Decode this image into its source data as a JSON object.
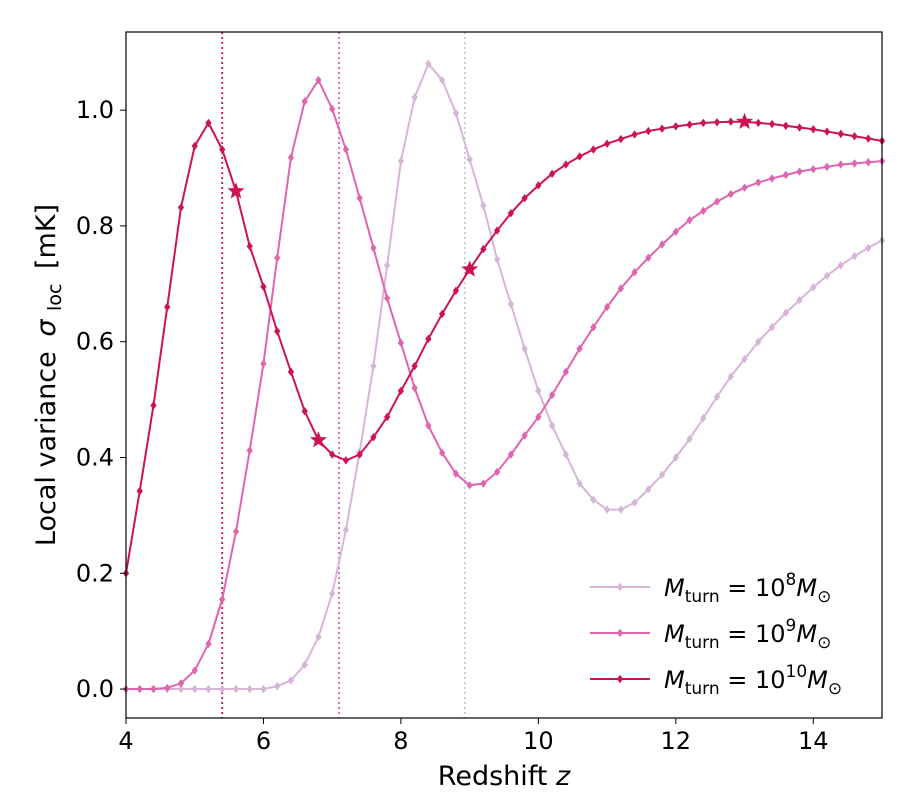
{
  "chart_data": {
    "type": "line",
    "xlabel": "Redshift",
    "xlabel_var": "z",
    "ylabel": "Local variance",
    "ylabel_symbol": "σ",
    "ylabel_sub": "loc",
    "ylabel_unit": "[mK]",
    "xlim": [
      4,
      15
    ],
    "ylim": [
      -0.05,
      1.135
    ],
    "xticks": [
      4,
      6,
      8,
      10,
      12,
      14
    ],
    "yticks": [
      0.0,
      0.2,
      0.4,
      0.6,
      0.8,
      1.0
    ],
    "xtick_labels": [
      "4",
      "6",
      "8",
      "10",
      "12",
      "14"
    ],
    "ytick_labels": [
      "0.0",
      "0.2",
      "0.4",
      "0.6",
      "0.8",
      "1.0"
    ],
    "legend_position": "lower-right",
    "series": [
      {
        "name_main": "M",
        "name_sub": "turn",
        "name_eq": " = 10",
        "name_exp": "8",
        "name_tail": "M",
        "name_tail_sub": "⊙",
        "color": "#d7b5d8",
        "marker": "diamond",
        "x": [
          4.0,
          4.2,
          4.4,
          4.6,
          4.8,
          5.0,
          5.2,
          5.4,
          5.6,
          5.8,
          6.0,
          6.2,
          6.4,
          6.6,
          6.8,
          7.0,
          7.2,
          7.4,
          7.6,
          7.8,
          8.0,
          8.2,
          8.4,
          8.6,
          8.8,
          9.0,
          9.2,
          9.4,
          9.6,
          9.8,
          10.0,
          10.2,
          10.4,
          10.6,
          10.8,
          11.0,
          11.2,
          11.4,
          11.6,
          11.8,
          12.0,
          12.2,
          12.4,
          12.6,
          12.8,
          13.0,
          13.2,
          13.4,
          13.6,
          13.8,
          14.0,
          14.2,
          14.4,
          14.6,
          14.8,
          15.0
        ],
        "y": [
          0.0,
          0.0,
          0.0,
          0.0,
          0.0,
          0.0,
          0.0,
          0.0,
          0.0,
          0.0,
          0.0,
          0.005,
          0.015,
          0.042,
          0.09,
          0.165,
          0.275,
          0.41,
          0.558,
          0.732,
          0.912,
          1.022,
          1.08,
          1.052,
          0.995,
          0.915,
          0.835,
          0.742,
          0.665,
          0.588,
          0.515,
          0.455,
          0.405,
          0.355,
          0.327,
          0.31,
          0.31,
          0.322,
          0.345,
          0.37,
          0.4,
          0.432,
          0.468,
          0.505,
          0.54,
          0.57,
          0.6,
          0.625,
          0.65,
          0.672,
          0.694,
          0.714,
          0.732,
          0.748,
          0.762,
          0.775
        ],
        "stars": [],
        "vline_x": 8.93,
        "vline_color": "#c8c8c8"
      },
      {
        "name_main": "M",
        "name_sub": "turn",
        "name_eq": " = 10",
        "name_exp": "9",
        "name_tail": "M",
        "name_tail_sub": "⊙",
        "color": "#df65b0",
        "marker": "diamond",
        "x": [
          4.0,
          4.2,
          4.4,
          4.6,
          4.8,
          5.0,
          5.2,
          5.4,
          5.6,
          5.8,
          6.0,
          6.2,
          6.4,
          6.6,
          6.8,
          7.0,
          7.2,
          7.4,
          7.6,
          7.8,
          8.0,
          8.2,
          8.4,
          8.6,
          8.8,
          9.0,
          9.2,
          9.4,
          9.6,
          9.8,
          10.0,
          10.2,
          10.4,
          10.6,
          10.8,
          11.0,
          11.2,
          11.4,
          11.6,
          11.8,
          12.0,
          12.2,
          12.4,
          12.6,
          12.8,
          13.0,
          13.2,
          13.4,
          13.6,
          13.8,
          14.0,
          14.2,
          14.4,
          14.6,
          14.8,
          15.0
        ],
        "y": [
          0.0,
          0.0,
          0.0,
          0.002,
          0.01,
          0.032,
          0.078,
          0.155,
          0.272,
          0.412,
          0.562,
          0.745,
          0.918,
          1.015,
          1.052,
          1.002,
          0.932,
          0.848,
          0.762,
          0.675,
          0.598,
          0.52,
          0.455,
          0.408,
          0.372,
          0.352,
          0.355,
          0.375,
          0.405,
          0.438,
          0.47,
          0.508,
          0.548,
          0.588,
          0.625,
          0.66,
          0.692,
          0.72,
          0.745,
          0.768,
          0.79,
          0.81,
          0.826,
          0.842,
          0.855,
          0.866,
          0.875,
          0.882,
          0.888,
          0.894,
          0.898,
          0.902,
          0.906,
          0.908,
          0.91,
          0.912
        ],
        "stars": [],
        "vline_x": 7.1,
        "vline_color": "#df65b0"
      },
      {
        "name_main": "M",
        "name_sub": "turn",
        "name_eq": " = 10",
        "name_exp": "10",
        "name_tail": "M",
        "name_tail_sub": "⊙",
        "color": "#ce1256",
        "marker": "diamond",
        "x": [
          4.0,
          4.2,
          4.4,
          4.6,
          4.8,
          5.0,
          5.2,
          5.4,
          5.6,
          5.8,
          6.0,
          6.2,
          6.4,
          6.6,
          6.8,
          7.0,
          7.2,
          7.4,
          7.6,
          7.8,
          8.0,
          8.2,
          8.4,
          8.6,
          8.8,
          9.0,
          9.2,
          9.4,
          9.6,
          9.8,
          10.0,
          10.2,
          10.4,
          10.6,
          10.8,
          11.0,
          11.2,
          11.4,
          11.6,
          11.8,
          12.0,
          12.2,
          12.4,
          12.6,
          12.8,
          13.0,
          13.2,
          13.4,
          13.6,
          13.8,
          14.0,
          14.2,
          14.4,
          14.6,
          14.8,
          15.0
        ],
        "y": [
          0.2,
          0.342,
          0.49,
          0.66,
          0.832,
          0.938,
          0.978,
          0.932,
          0.86,
          0.765,
          0.695,
          0.618,
          0.548,
          0.48,
          0.43,
          0.405,
          0.395,
          0.405,
          0.435,
          0.47,
          0.515,
          0.558,
          0.605,
          0.648,
          0.688,
          0.725,
          0.76,
          0.792,
          0.822,
          0.848,
          0.87,
          0.89,
          0.906,
          0.92,
          0.932,
          0.942,
          0.95,
          0.958,
          0.964,
          0.968,
          0.972,
          0.975,
          0.978,
          0.979,
          0.98,
          0.98,
          0.978,
          0.976,
          0.973,
          0.97,
          0.967,
          0.963,
          0.959,
          0.955,
          0.951,
          0.947
        ],
        "stars": [
          [
            5.6,
            0.86
          ],
          [
            6.8,
            0.43
          ],
          [
            9.0,
            0.725
          ],
          [
            13.0,
            0.98
          ]
        ],
        "vline_x": 5.4,
        "vline_color": "#ce1256"
      }
    ]
  }
}
